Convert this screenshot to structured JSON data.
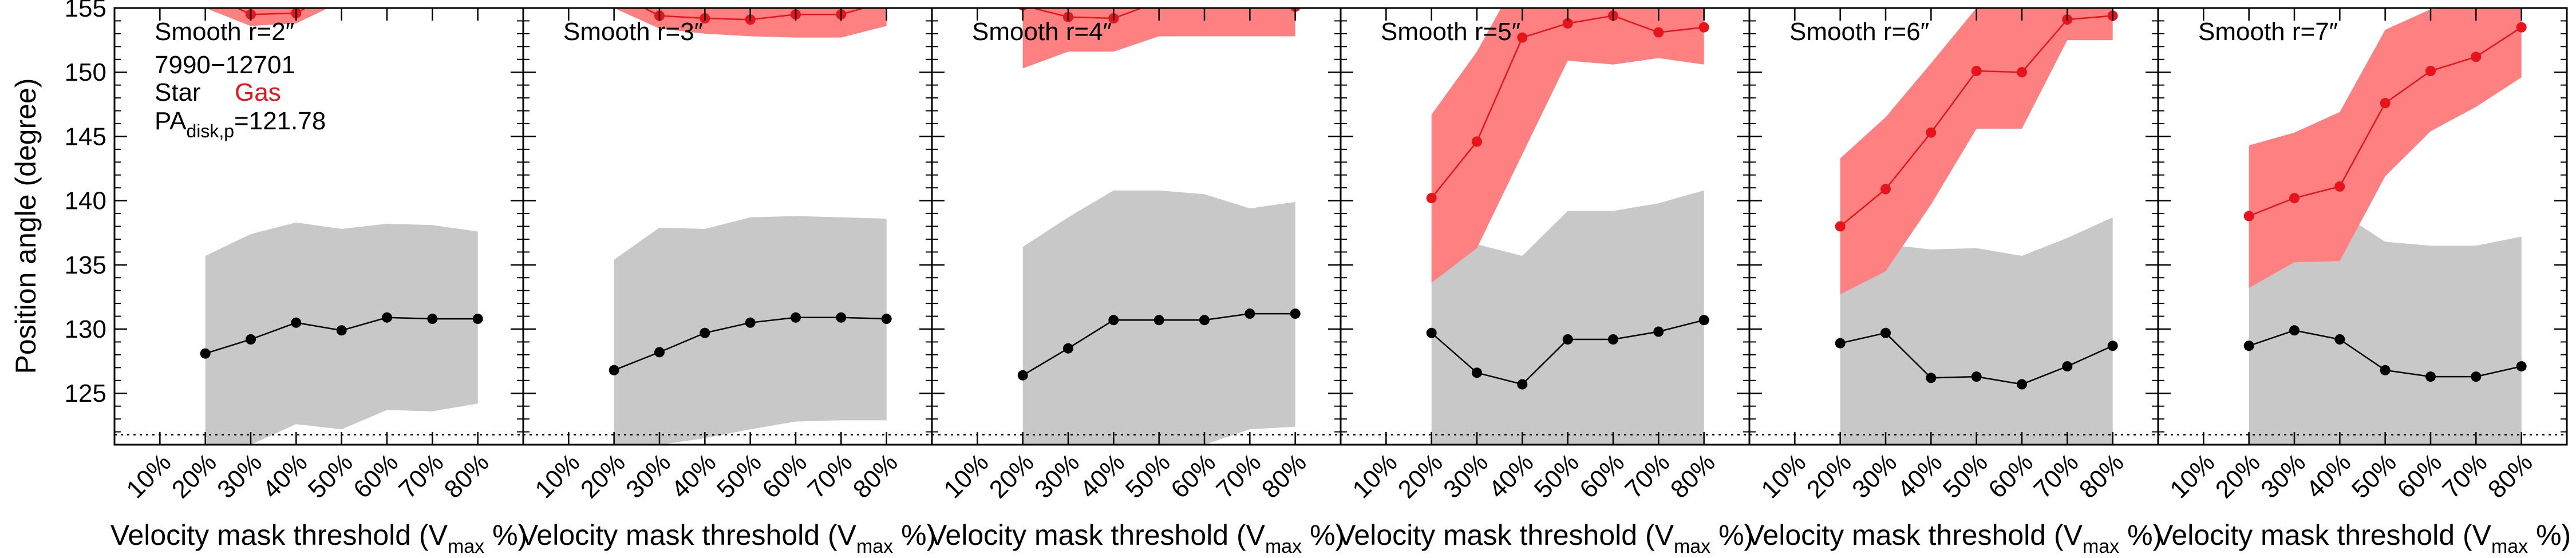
{
  "chart_data": {
    "type": "line",
    "ylabel": "Position angle (degree)",
    "xlabel": "Velocity mask threshold (V_max %)",
    "xlabel_parts": {
      "main": "Velocity mask threshold (V",
      "sub": "max",
      "tail": " %)"
    },
    "x_categories": [
      "10%",
      "20%",
      "30%",
      "40%",
      "50%",
      "60%",
      "70%",
      "80%"
    ],
    "x_values": [
      10,
      20,
      30,
      40,
      50,
      60,
      70,
      80
    ],
    "xlim": [
      0,
      90
    ],
    "ylim": [
      121,
      155
    ],
    "yticks": [
      125,
      130,
      135,
      140,
      145,
      150,
      155
    ],
    "disk_pa_line": 121.78,
    "annotations": {
      "plate_ifu": "7990−12701",
      "legend_star": "Star",
      "legend_gas": "Gas",
      "pa_label_main": "PA",
      "pa_label_sub": "disk,p",
      "pa_label_value": "=121.78"
    },
    "colors": {
      "star": "#000000",
      "gas": "#e8141c",
      "star_band": "#c8c8c8",
      "gas_band": "#ff8080"
    },
    "panels": [
      {
        "title": "Smooth r=2″",
        "star": [
          128.1,
          129.2,
          130.5,
          129.9,
          130.9,
          130.8,
          130.8
        ],
        "star_lo": [
          121,
          121,
          122.6,
          122.2,
          123.7,
          123.6,
          124.2
        ],
        "star_hi": [
          135.7,
          137.4,
          138.3,
          137.8,
          138.2,
          138.1,
          137.6
        ],
        "gas": [
          156.2,
          154.5,
          154.6,
          156.5,
          157,
          157,
          157
        ],
        "gas_lo": [
          155,
          153.6,
          153.8,
          155.5,
          156,
          156,
          156
        ],
        "gas_hi": [
          158,
          158,
          158,
          158,
          158,
          158,
          158
        ]
      },
      {
        "title": "Smooth r=3″",
        "star": [
          126.8,
          128.2,
          129.7,
          130.5,
          130.9,
          130.9,
          130.8
        ],
        "star_lo": [
          121,
          121,
          121.5,
          122.2,
          122.8,
          122.9,
          122.9
        ],
        "star_hi": [
          135.4,
          137.9,
          137.8,
          138.7,
          138.8,
          138.7,
          138.6
        ],
        "gas": [
          156.2,
          154.4,
          154.2,
          154.1,
          154.5,
          154.5,
          155.5
        ],
        "gas_lo": [
          155,
          153.4,
          153,
          152.8,
          152.7,
          152.7,
          153.6
        ],
        "gas_hi": [
          158,
          158,
          158,
          158,
          158,
          158,
          158
        ]
      },
      {
        "title": "Smooth r=4″",
        "star": [
          126.4,
          128.5,
          130.7,
          130.7,
          130.7,
          131.2,
          131.2
        ],
        "star_lo": [
          121,
          121,
          121,
          121,
          121,
          122.2,
          122.4
        ],
        "star_hi": [
          136.4,
          138.7,
          140.8,
          140.8,
          140.5,
          139.4,
          139.9
        ],
        "gas": [
          155.2,
          154.3,
          154.2,
          155.5,
          155.5,
          155.6,
          155.1
        ],
        "gas_lo": [
          150.3,
          151.6,
          151.6,
          152.8,
          152.8,
          152.8,
          152.8
        ],
        "gas_hi": [
          158,
          158,
          158,
          158,
          158,
          158,
          158
        ]
      },
      {
        "title": "Smooth r=5″",
        "star": [
          129.7,
          126.6,
          125.7,
          129.2,
          129.2,
          129.8,
          130.7
        ],
        "star_lo": [
          121,
          121,
          121,
          121,
          121,
          121,
          121
        ],
        "star_hi": [
          136.2,
          136.6,
          135.7,
          139.2,
          139.2,
          139.8,
          140.8
        ],
        "gas": [
          140.2,
          144.6,
          152.7,
          153.8,
          154.4,
          153.1,
          153.5
        ],
        "gas_lo": [
          133.6,
          136.3,
          143.6,
          150.9,
          150.6,
          151.1,
          150.6
        ],
        "gas_hi": [
          146.7,
          151.6,
          158,
          158,
          158,
          158,
          158
        ]
      },
      {
        "title": "Smooth r=6″",
        "star": [
          128.9,
          129.7,
          126.2,
          126.3,
          125.7,
          127.1,
          128.7
        ],
        "star_lo": [
          121,
          121,
          121,
          121,
          121,
          121,
          121
        ],
        "star_hi": [
          133,
          136.6,
          136.2,
          136.3,
          135.7,
          137.1,
          138.7
        ],
        "gas": [
          138,
          140.9,
          145.3,
          150.1,
          150,
          154.1,
          154.4
        ],
        "gas_lo": [
          132.7,
          134.5,
          139.7,
          145.6,
          145.6,
          152.5,
          152.5
        ],
        "gas_hi": [
          143.3,
          146.5,
          150.7,
          155,
          155,
          156.2,
          156.6
        ]
      },
      {
        "title": "Smooth r=7″",
        "star": [
          128.7,
          129.9,
          129.2,
          126.8,
          126.3,
          126.3,
          127.1
        ],
        "star_lo": [
          121,
          121,
          121,
          121,
          121,
          121,
          121
        ],
        "star_hi": [
          133.2,
          137.1,
          139.1,
          136.8,
          136.5,
          136.5,
          137.2
        ],
        "gas": [
          138.8,
          140.2,
          141.1,
          147.6,
          150.1,
          151.2,
          153.5
        ],
        "gas_lo": [
          133.2,
          135.2,
          135.3,
          141.9,
          145.4,
          147.3,
          149.6
        ],
        "gas_hi": [
          144.3,
          145.3,
          146.9,
          153.3,
          154.9,
          155.1,
          157.3
        ]
      }
    ]
  }
}
